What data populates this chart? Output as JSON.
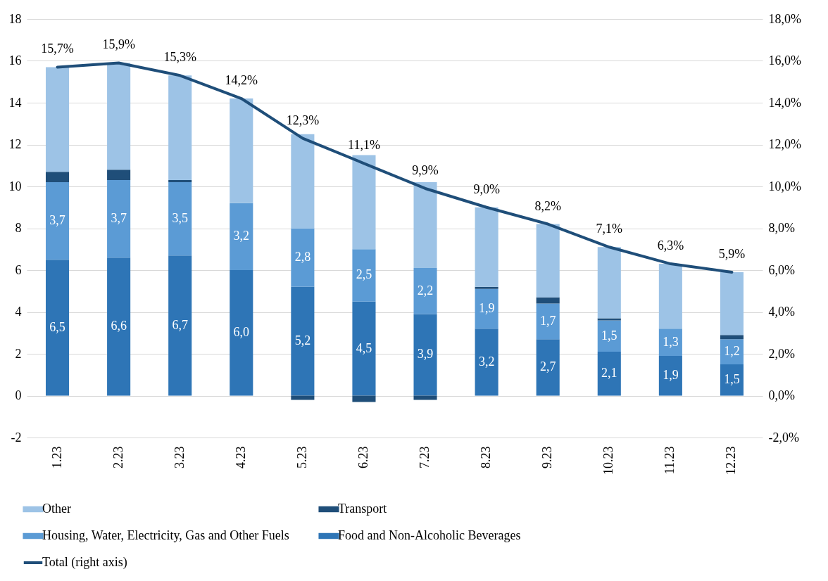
{
  "chart_data": {
    "type": "bar",
    "stacked": true,
    "categories": [
      "1.23",
      "2.23",
      "3.23",
      "4.23",
      "5.23",
      "6.23",
      "7.23",
      "8.23",
      "9.23",
      "10.23",
      "11.23",
      "12.23"
    ],
    "series": [
      {
        "name": "Food and Non-Alcoholic Beverages",
        "color": "#2e75b6",
        "values": [
          6.5,
          6.6,
          6.7,
          6.0,
          5.2,
          4.5,
          3.9,
          3.2,
          2.7,
          2.1,
          1.9,
          1.5
        ],
        "value_labels": [
          "6,5",
          "6,6",
          "6,7",
          "6,0",
          "5,2",
          "4,5",
          "3,9",
          "3,2",
          "2,7",
          "2,1",
          "1,9",
          "1,5"
        ]
      },
      {
        "name": "Housing, Water, Electricity, Gas and Other Fuels",
        "color": "#5b9bd5",
        "values": [
          3.7,
          3.7,
          3.5,
          3.2,
          2.8,
          2.5,
          2.2,
          1.9,
          1.7,
          1.5,
          1.3,
          1.2
        ],
        "value_labels": [
          "3,7",
          "3,7",
          "3,5",
          "3,2",
          "2,8",
          "2,5",
          "2,2",
          "1,9",
          "1,7",
          "1,5",
          "1,3",
          "1,2"
        ]
      },
      {
        "name": "Transport",
        "color": "#1f4e79",
        "values": [
          0.5,
          0.5,
          0.1,
          0,
          -0.2,
          -0.3,
          -0.2,
          0.1,
          0.3,
          0.1,
          0,
          0.2
        ]
      },
      {
        "name": "Other",
        "color": "#9dc3e6",
        "values": [
          5.0,
          5.1,
          5.0,
          5.0,
          4.5,
          4.5,
          4.1,
          3.8,
          3.5,
          3.4,
          3.1,
          3.0
        ]
      },
      {
        "name": "Total (right axis)",
        "type": "line",
        "axis": "y2",
        "color": "#1f4e79",
        "values": [
          15.7,
          15.9,
          15.3,
          14.2,
          12.3,
          11.1,
          9.9,
          9.0,
          8.2,
          7.1,
          6.3,
          5.9
        ],
        "value_labels": [
          "15,7%",
          "15,9%",
          "15,3%",
          "14,2%",
          "12,3%",
          "11,1%",
          "9,9%",
          "9,0%",
          "8,2%",
          "7,1%",
          "6,3%",
          "5,9%"
        ]
      }
    ],
    "ylim": [
      -2,
      18
    ],
    "yticks": [
      -2,
      0,
      2,
      4,
      6,
      8,
      10,
      12,
      14,
      16,
      18
    ],
    "y2lim": [
      -2,
      18
    ],
    "y2ticks": [
      {
        "value": -2,
        "label": "-2,0%"
      },
      {
        "value": 0,
        "label": "0,0%"
      },
      {
        "value": 2,
        "label": "2,0%"
      },
      {
        "value": 4,
        "label": "4,0%"
      },
      {
        "value": 6,
        "label": "6,0%"
      },
      {
        "value": 8,
        "label": "8,0%"
      },
      {
        "value": 10,
        "label": "10,0%"
      },
      {
        "value": 12,
        "label": "12,0%"
      },
      {
        "value": 14,
        "label": "14,0%"
      },
      {
        "value": 16,
        "label": "16,0%"
      },
      {
        "value": 18,
        "label": "18,0%"
      }
    ],
    "grid": "y",
    "legend": "bottom",
    "marker": "none",
    "line_style": "solid"
  }
}
